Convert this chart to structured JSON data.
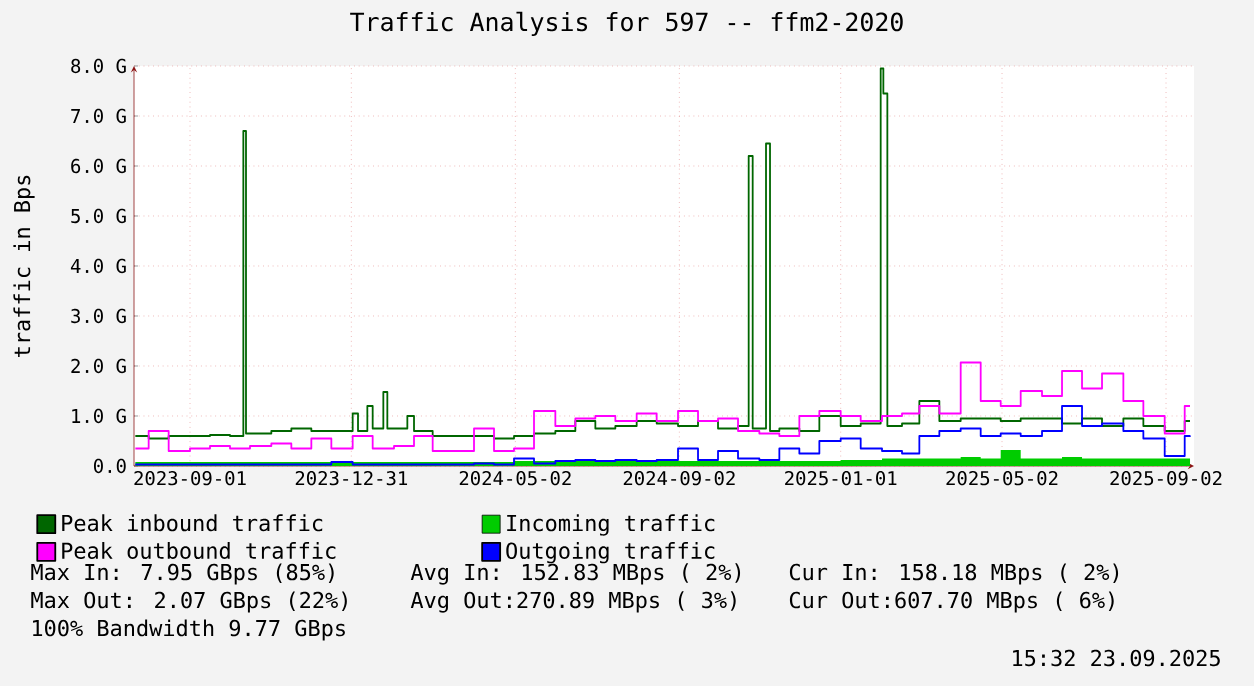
{
  "chart_data": {
    "type": "step",
    "title": "Traffic Analysis for 597 -- ffm2-2020",
    "ylabel": "traffic in Bps",
    "xlim": [
      "2023-07-21",
      "2025-09-23"
    ],
    "xticks": [
      "2023-09-01",
      "2023-12-31",
      "2024-05-02",
      "2024-09-02",
      "2025-01-01",
      "2025-05-02",
      "2025-09-02"
    ],
    "ylim": [
      0,
      8
    ],
    "yticks": [
      {
        "value": 0,
        "label": "0.0"
      },
      {
        "value": 1,
        "label": "1.0 G"
      },
      {
        "value": 2,
        "label": "2.0 G"
      },
      {
        "value": 3,
        "label": "3.0 G"
      },
      {
        "value": 4,
        "label": "4.0 G"
      },
      {
        "value": 5,
        "label": "5.0 G"
      },
      {
        "value": 6,
        "label": "6.0 G"
      },
      {
        "value": 7,
        "label": "7.0 G"
      },
      {
        "value": 8,
        "label": "8.0 G"
      }
    ],
    "grid": true,
    "legend": "bottom",
    "x": [
      "2023-07-22",
      "2023-08-01",
      "2023-08-16",
      "2023-09-01",
      "2023-09-16",
      "2023-10-01",
      "2023-10-16",
      "2023-11-01",
      "2023-11-16",
      "2023-12-01",
      "2023-12-16",
      "2024-01-01",
      "2024-01-16",
      "2024-02-01",
      "2024-02-16",
      "2024-03-01",
      "2024-03-16",
      "2024-04-01",
      "2024-04-16",
      "2024-05-01",
      "2024-05-16",
      "2024-06-01",
      "2024-06-16",
      "2024-07-01",
      "2024-07-16",
      "2024-08-01",
      "2024-08-16",
      "2024-09-01",
      "2024-09-16",
      "2024-10-01",
      "2024-10-16",
      "2024-11-01",
      "2024-11-16",
      "2024-12-01",
      "2024-12-16",
      "2025-01-01",
      "2025-01-16",
      "2025-02-01",
      "2025-02-16",
      "2025-03-01",
      "2025-03-16",
      "2025-04-01",
      "2025-04-16",
      "2025-05-01",
      "2025-05-16",
      "2025-06-01",
      "2025-06-16",
      "2025-07-01",
      "2025-07-16",
      "2025-08-01",
      "2025-08-16",
      "2025-09-01",
      "2025-09-16",
      "2025-09-20"
    ],
    "series": [
      {
        "name": "Peak inbound traffic",
        "color": "#006600",
        "x": [
          "2023-07-22",
          "2023-08-01",
          "2023-08-16",
          "2023-09-01",
          "2023-09-16",
          "2023-10-01",
          "2023-10-11",
          "2023-10-13",
          "2023-11-01",
          "2023-11-16",
          "2023-12-01",
          "2023-12-16",
          "2024-01-01",
          "2024-01-05",
          "2024-01-12",
          "2024-01-16",
          "2024-01-24",
          "2024-01-27",
          "2024-02-11",
          "2024-02-16",
          "2024-03-01",
          "2024-03-16",
          "2024-04-01",
          "2024-04-16",
          "2024-05-01",
          "2024-05-16",
          "2024-06-01",
          "2024-06-16",
          "2024-07-01",
          "2024-07-16",
          "2024-08-01",
          "2024-08-16",
          "2024-09-01",
          "2024-09-16",
          "2024-10-01",
          "2024-10-16",
          "2024-10-24",
          "2024-10-27",
          "2024-11-06",
          "2024-11-09",
          "2024-11-16",
          "2024-12-01",
          "2024-12-16",
          "2025-01-01",
          "2025-01-16",
          "2025-01-31",
          "2025-02-02",
          "2025-02-05",
          "2025-02-16",
          "2025-03-01",
          "2025-03-16",
          "2025-04-01",
          "2025-04-16",
          "2025-05-01",
          "2025-05-16",
          "2025-06-01",
          "2025-06-16",
          "2025-07-01",
          "2025-07-16",
          "2025-08-01",
          "2025-08-16",
          "2025-09-01",
          "2025-09-16",
          "2025-09-20"
        ],
        "values": [
          0.6,
          0.55,
          0.6,
          0.6,
          0.62,
          0.6,
          6.7,
          0.65,
          0.7,
          0.75,
          0.7,
          0.7,
          1.05,
          0.7,
          1.2,
          0.75,
          1.48,
          0.75,
          1.0,
          0.7,
          0.6,
          0.6,
          0.6,
          0.55,
          0.6,
          0.65,
          0.7,
          0.9,
          0.75,
          0.8,
          0.9,
          0.85,
          0.8,
          0.9,
          0.75,
          0.8,
          6.2,
          0.75,
          6.45,
          0.7,
          0.75,
          0.7,
          1.0,
          0.8,
          0.85,
          7.95,
          7.45,
          0.8,
          0.85,
          1.3,
          0.9,
          0.95,
          0.95,
          0.9,
          0.95,
          0.95,
          0.85,
          0.95,
          0.8,
          0.95,
          0.8,
          0.7,
          0.9,
          0.9
        ]
      },
      {
        "name": "Incoming traffic",
        "type": "area",
        "color": "#00cc00",
        "values": [
          0.08,
          0.08,
          0.08,
          0.08,
          0.08,
          0.08,
          0.08,
          0.08,
          0.08,
          0.08,
          0.08,
          0.08,
          0.08,
          0.08,
          0.08,
          0.08,
          0.08,
          0.08,
          0.08,
          0.1,
          0.1,
          0.1,
          0.1,
          0.1,
          0.1,
          0.1,
          0.1,
          0.1,
          0.1,
          0.1,
          0.1,
          0.1,
          0.1,
          0.1,
          0.1,
          0.12,
          0.12,
          0.15,
          0.15,
          0.15,
          0.15,
          0.18,
          0.15,
          0.32,
          0.15,
          0.15,
          0.18,
          0.15,
          0.15,
          0.15,
          0.15,
          0.15,
          0.15,
          0.16
        ]
      },
      {
        "name": "Peak outbound traffic",
        "color": "#ff00ff",
        "values": [
          0.35,
          0.7,
          0.3,
          0.35,
          0.4,
          0.35,
          0.4,
          0.45,
          0.35,
          0.55,
          0.35,
          0.6,
          0.35,
          0.4,
          0.6,
          0.3,
          0.3,
          0.75,
          0.3,
          0.35,
          1.1,
          0.8,
          0.95,
          1.0,
          0.9,
          1.05,
          0.9,
          1.1,
          0.9,
          0.95,
          0.7,
          0.65,
          0.6,
          1.0,
          1.1,
          1.0,
          0.9,
          1.0,
          1.05,
          1.2,
          1.05,
          2.07,
          1.3,
          1.2,
          1.5,
          1.4,
          1.9,
          1.55,
          1.85,
          1.3,
          1.0,
          0.65,
          1.2,
          1.2
        ]
      },
      {
        "name": "Outgoing traffic",
        "color": "#0000ff",
        "values": [
          0.03,
          0.03,
          0.03,
          0.03,
          0.03,
          0.03,
          0.03,
          0.03,
          0.03,
          0.03,
          0.08,
          0.03,
          0.03,
          0.03,
          0.03,
          0.03,
          0.03,
          0.05,
          0.03,
          0.15,
          0.05,
          0.1,
          0.12,
          0.1,
          0.12,
          0.1,
          0.12,
          0.35,
          0.12,
          0.3,
          0.15,
          0.12,
          0.35,
          0.25,
          0.5,
          0.55,
          0.35,
          0.3,
          0.25,
          0.6,
          0.7,
          0.75,
          0.6,
          0.65,
          0.6,
          0.7,
          1.2,
          0.8,
          0.85,
          0.7,
          0.55,
          0.2,
          0.6,
          0.61
        ]
      }
    ],
    "annotations": [
      "Max In: 7.95 GBps (85%)",
      "Avg In: 152.83 MBps ( 2%)",
      "Cur In: 158.18 MBps ( 2%)",
      "Max Out: 2.07 GBps (22%)",
      "Avg Out:270.89 MBps ( 3%)",
      "Cur Out:607.70 MBps ( 6%)",
      "100% Bandwidth 9.77 GBps",
      "15:32 23.09.2025"
    ]
  }
}
